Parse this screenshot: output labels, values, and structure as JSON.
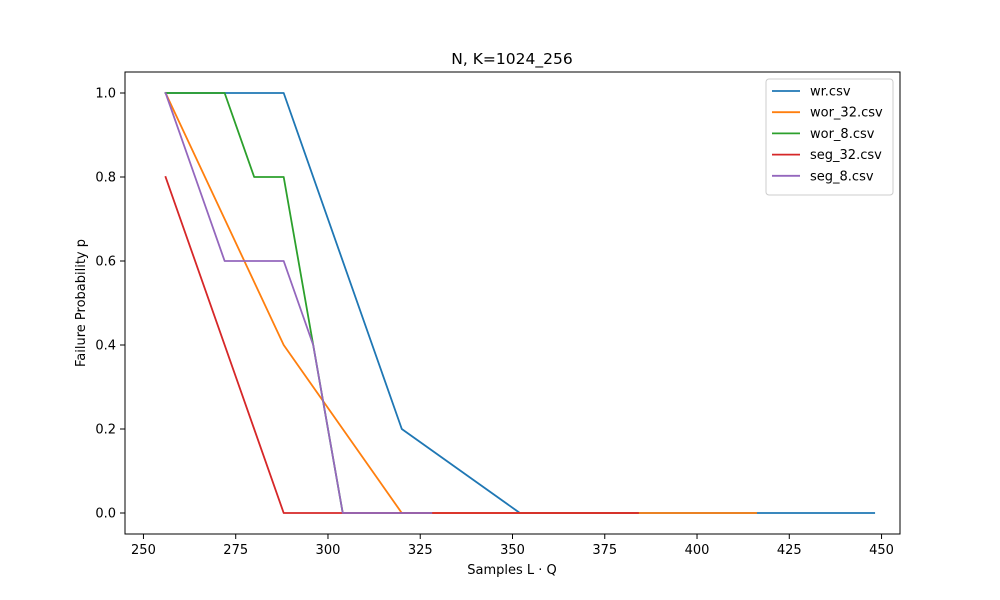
{
  "chart_data": {
    "type": "line",
    "title": "N, K=1024_256",
    "xlabel": "Samples L · Q",
    "ylabel": "Failure Probability p",
    "xlim": [
      245,
      455
    ],
    "ylim": [
      -0.05,
      1.05
    ],
    "x_ticks": [
      250,
      275,
      300,
      325,
      350,
      375,
      400,
      425,
      450
    ],
    "y_ticks": [
      0.0,
      0.2,
      0.4,
      0.6,
      0.8,
      1.0
    ],
    "x_tick_labels": [
      "250",
      "275",
      "300",
      "325",
      "350",
      "375",
      "400",
      "425",
      "450"
    ],
    "y_tick_labels": [
      "0.0",
      "0.2",
      "0.4",
      "0.6",
      "0.8",
      "1.0"
    ],
    "grid": false,
    "legend_position": "top-right",
    "series": [
      {
        "name": "wr.csv",
        "color": "#1f77b4",
        "x": [
          256,
          288,
          320,
          352,
          384,
          416,
          448
        ],
        "y": [
          1.0,
          1.0,
          0.2,
          0.0,
          0.0,
          0.0,
          0.0
        ]
      },
      {
        "name": "wor_32.csv",
        "color": "#ff7f0e",
        "x": [
          256,
          288,
          320,
          352,
          384,
          416
        ],
        "y": [
          1.0,
          0.4,
          0.0,
          0.0,
          0.0,
          0.0
        ]
      },
      {
        "name": "wor_8.csv",
        "color": "#2ca02c",
        "x": [
          256,
          264,
          272,
          280,
          288,
          296,
          304,
          312,
          320,
          328
        ],
        "y": [
          1.0,
          1.0,
          1.0,
          0.8,
          0.8,
          0.4,
          0.0,
          0.0,
          0.0,
          0.0
        ]
      },
      {
        "name": "seg_32.csv",
        "color": "#d62728",
        "x": [
          256,
          288,
          320,
          352,
          384
        ],
        "y": [
          0.8,
          0.0,
          0.0,
          0.0,
          0.0
        ]
      },
      {
        "name": "seg_8.csv",
        "color": "#9467bd",
        "x": [
          256,
          264,
          272,
          280,
          288,
          296,
          304,
          312,
          320,
          328
        ],
        "y": [
          1.0,
          0.8,
          0.6,
          0.6,
          0.6,
          0.4,
          0.0,
          0.0,
          0.0,
          0.0
        ]
      }
    ]
  }
}
